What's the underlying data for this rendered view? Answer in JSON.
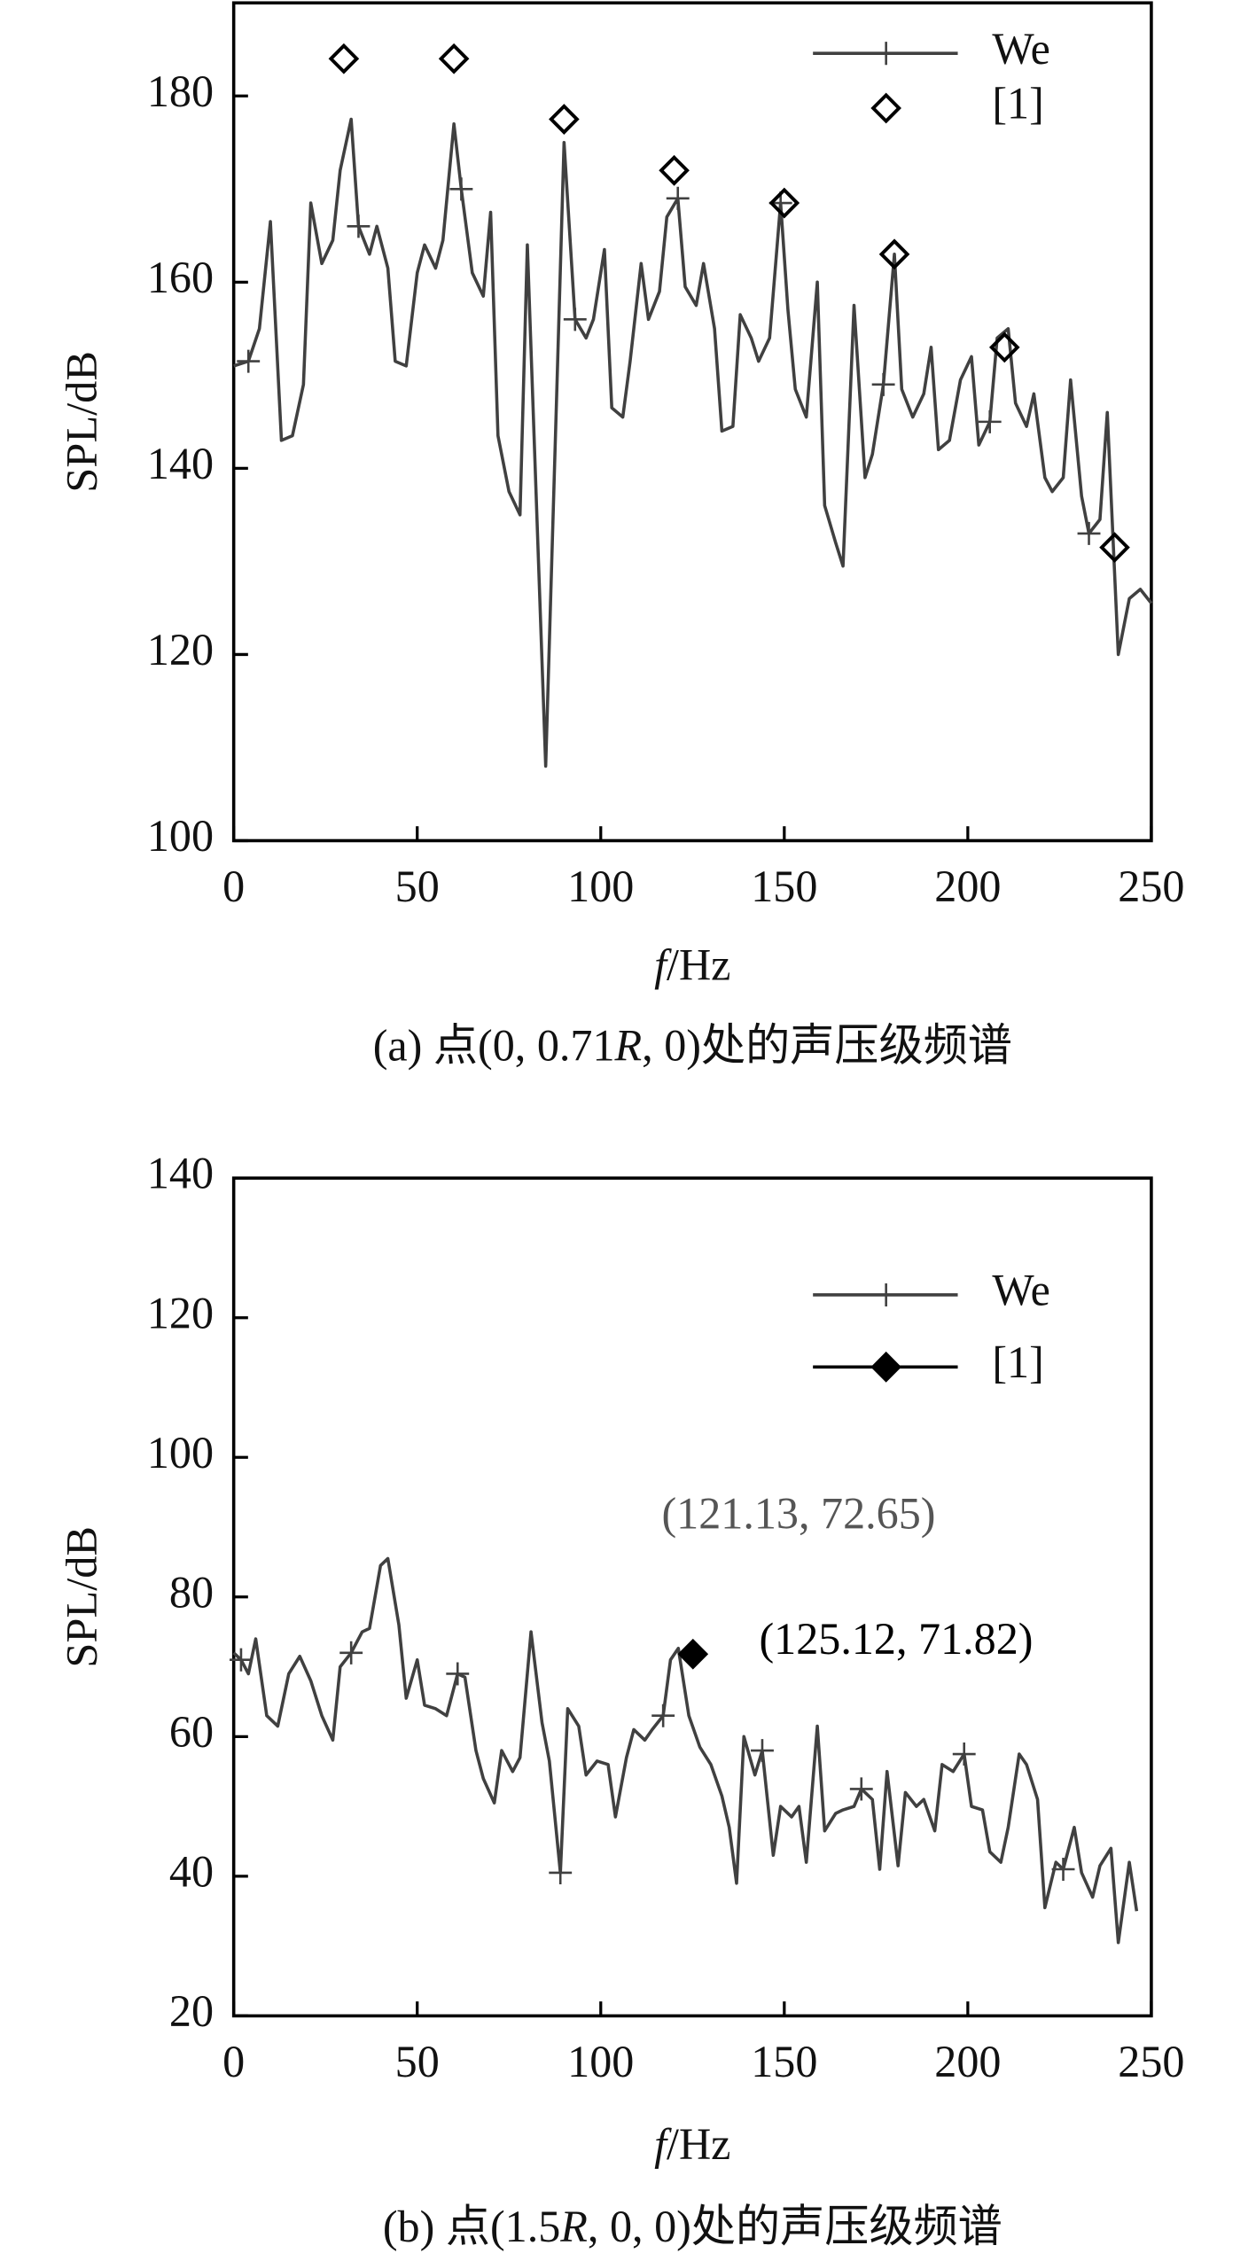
{
  "chart_data": [
    {
      "type": "line",
      "legend": "upper right",
      "xlabel": {
        "italic": "f",
        "rest": "/Hz"
      },
      "ylabel": "SPL/dB",
      "caption": {
        "prefix": "(a) 点(0, 0.71",
        "italic": "R",
        "suffix": ", 0)处的声压级频谱"
      },
      "xlim": [
        0,
        250
      ],
      "ylim": [
        100,
        190
      ],
      "xticks": [
        0,
        50,
        100,
        150,
        200,
        250
      ],
      "yticks": [
        100,
        120,
        140,
        160,
        180
      ],
      "series": [
        {
          "name": "We",
          "color": "#404040",
          "marker": "+",
          "line": true,
          "x": [
            0,
            4,
            7,
            10,
            13,
            16,
            19,
            21,
            24,
            27,
            29,
            32,
            34,
            37,
            39,
            42,
            44,
            47,
            50,
            52,
            55,
            57,
            60,
            62,
            65,
            68,
            70,
            72,
            75,
            78,
            80,
            85,
            88,
            90,
            93,
            96,
            98,
            101,
            103,
            106,
            108,
            111,
            113,
            116,
            118,
            121,
            123,
            126,
            128,
            131,
            133,
            136,
            138,
            141,
            143,
            146,
            149,
            151,
            153,
            156,
            159,
            161,
            164,
            166,
            169,
            172,
            174,
            177,
            180,
            182,
            185,
            188,
            190,
            192,
            195,
            198,
            201,
            203,
            206,
            208,
            211,
            213,
            216,
            218,
            221,
            223,
            226,
            228,
            231,
            233,
            236,
            238,
            241,
            244,
            247,
            250
          ],
          "values": [
            151,
            151.5,
            155,
            166.5,
            143,
            143.5,
            149,
            168.5,
            162,
            164.5,
            172,
            177.5,
            166,
            163,
            166,
            161.5,
            151.5,
            151,
            161,
            164,
            161.5,
            164.5,
            177,
            170,
            161,
            158.5,
            167.5,
            143.5,
            137.5,
            135,
            164,
            108,
            148,
            175,
            156,
            154,
            156,
            163.5,
            146.5,
            145.5,
            151.5,
            162,
            156,
            159,
            167,
            169,
            159.5,
            157.5,
            162,
            155,
            144,
            144.5,
            156.5,
            154,
            151.5,
            154,
            168.5,
            157,
            148.5,
            145.5,
            160,
            136,
            132,
            129.5,
            157.5,
            139,
            141.5,
            149,
            163,
            148.5,
            145.5,
            148,
            153,
            142,
            143,
            149.5,
            152,
            142.5,
            145,
            154,
            155,
            147,
            144.5,
            148,
            139,
            137.5,
            139,
            149.5,
            137,
            133,
            134.5,
            146,
            120,
            126,
            127,
            125.5
          ]
        },
        {
          "name": "[1]",
          "color": "#000000",
          "marker": "diamond",
          "marker_fill": "none",
          "line": false,
          "x": [
            30,
            60,
            90,
            120,
            150,
            180,
            210,
            240
          ],
          "values": [
            184,
            184,
            177.5,
            172,
            168.5,
            163,
            153,
            131.5
          ]
        }
      ]
    },
    {
      "type": "line",
      "legend": "upper right",
      "xlabel": {
        "italic": "f",
        "rest": "/Hz"
      },
      "ylabel": "SPL/dB",
      "caption": {
        "prefix": "(b) 点(1.5",
        "italic": "R",
        "suffix": ", 0, 0)处的声压级频谱"
      },
      "xlim": [
        0,
        250
      ],
      "ylim": [
        20,
        140
      ],
      "xticks": [
        0,
        50,
        100,
        150,
        200,
        250
      ],
      "yticks": [
        20,
        40,
        60,
        80,
        100,
        120,
        140
      ],
      "annotations": [
        {
          "text": "(121.13, 72.65)",
          "color": "#555555"
        },
        {
          "text": "(125.12, 71.82)",
          "color": "#000000"
        }
      ],
      "series": [
        {
          "name": "We",
          "color": "#404040",
          "marker": "+",
          "line": true,
          "x": [
            0,
            2,
            4,
            6,
            9,
            12,
            15,
            18,
            21,
            24,
            27,
            29,
            32,
            35,
            37,
            40,
            42,
            45,
            47,
            50,
            52,
            55,
            58,
            61,
            63,
            66,
            68,
            71,
            73,
            76,
            78,
            81,
            84,
            86,
            89,
            91,
            94,
            96,
            99,
            102,
            104,
            107,
            109,
            112,
            114,
            117,
            119,
            121.13,
            124,
            127,
            130,
            133,
            135,
            137,
            139,
            142,
            144,
            147,
            149,
            152,
            154,
            156,
            159,
            161,
            164,
            166,
            169,
            171,
            174,
            176,
            178,
            181,
            183,
            186,
            188,
            191,
            193,
            196,
            199,
            201,
            204,
            206,
            209,
            211,
            214,
            216,
            219,
            221,
            224,
            226,
            229,
            231,
            234,
            236,
            239,
            241,
            244,
            246
          ],
          "values": [
            72,
            71,
            69,
            74,
            63,
            61.5,
            69,
            71.5,
            68,
            63,
            59.5,
            70,
            72,
            75,
            75.5,
            84.5,
            85.5,
            76,
            65.5,
            71,
            64.5,
            64,
            63,
            69,
            68.5,
            58,
            54,
            50.5,
            58,
            55,
            57,
            75,
            62,
            56.5,
            40.5,
            64,
            61.5,
            54.5,
            56.5,
            56,
            48.5,
            57,
            61,
            59.5,
            61,
            63,
            71,
            72.65,
            63,
            58.5,
            56,
            51.5,
            47,
            39,
            60,
            54.5,
            58,
            43,
            50,
            48.5,
            50,
            42,
            61.5,
            46.5,
            49,
            49.5,
            50,
            52.5,
            51,
            41,
            55,
            41.5,
            52,
            50,
            51,
            46.5,
            56,
            55,
            57.5,
            50,
            49.5,
            43.5,
            42,
            47,
            57.5,
            56,
            51,
            35.5,
            42,
            41,
            47,
            40.5,
            37,
            41.5,
            44,
            30.5,
            42,
            35
          ]
        },
        {
          "name": "[1]",
          "color": "#000000",
          "marker": "diamond",
          "marker_fill": "#000000",
          "line": true,
          "x": [
            125.12
          ],
          "values": [
            71.82
          ]
        }
      ]
    }
  ]
}
